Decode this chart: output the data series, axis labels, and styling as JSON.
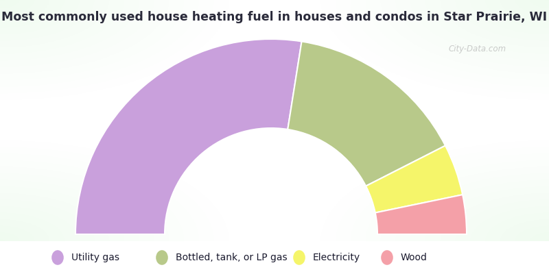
{
  "title": "Most commonly used house heating fuel in houses and condos in Star Prairie, WI",
  "segments": [
    {
      "label": "Utility gas",
      "value": 55.0,
      "color": "#c9a0dc"
    },
    {
      "label": "Bottled, tank, or LP gas",
      "value": 30.0,
      "color": "#b8c98a"
    },
    {
      "label": "Electricity",
      "value": 8.5,
      "color": "#f5f56a"
    },
    {
      "label": "Wood",
      "value": 6.5,
      "color": "#f4a0a8"
    }
  ],
  "background_color": "#cde8cc",
  "legend_bg": "#00e5ff",
  "title_color": "#2a2a3a",
  "title_fontsize": 12.5,
  "legend_fontsize": 10,
  "watermark": "City-Data.com",
  "fig_width": 8.0,
  "fig_height": 4.0,
  "dpi": 100
}
